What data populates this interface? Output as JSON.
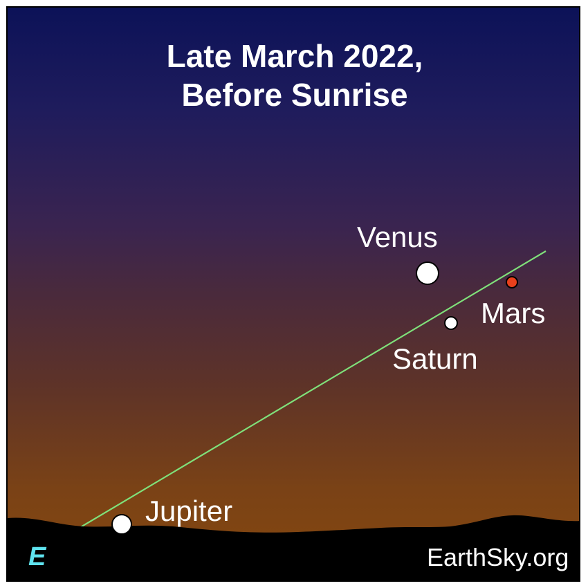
{
  "title": {
    "line1": "Late March 2022,",
    "line2": "Before Sunrise"
  },
  "planets": [
    {
      "name": "Venus",
      "color": "#ffffff"
    },
    {
      "name": "Mars",
      "color": "#e8401c"
    },
    {
      "name": "Saturn",
      "color": "#ffffff"
    },
    {
      "name": "Jupiter",
      "color": "#ffffff"
    }
  ],
  "direction": "E",
  "credit": "EarthSky.org",
  "colors": {
    "sky_top": "#0c1258",
    "sky_horizon": "#86480e",
    "ground": "#000000",
    "ecliptic_line": "#7fe07a",
    "direction_label": "#5fe3ef"
  }
}
